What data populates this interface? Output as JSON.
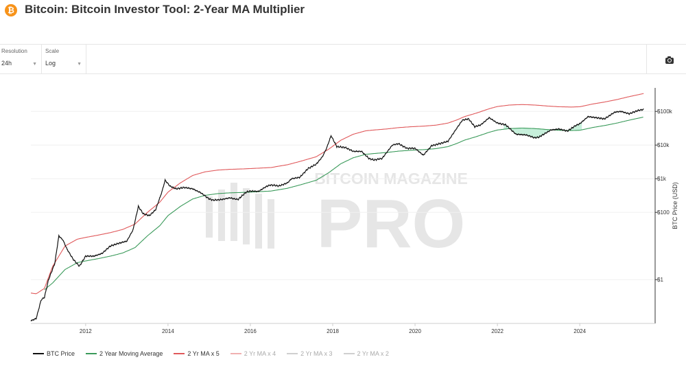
{
  "header": {
    "title": "Bitcoin: Bitcoin Investor Tool: 2-Year MA Multiplier",
    "logo_glyph": "₿",
    "logo_color": "#f7931a"
  },
  "controls": {
    "resolution": {
      "label": "Resolution",
      "value": "24h"
    },
    "scale": {
      "label": "Scale",
      "value": "Log"
    },
    "export_icon": "camera-icon"
  },
  "watermark": {
    "line1": "BITCOIN MAGAZINE",
    "line2": "PRO"
  },
  "chart_data": {
    "type": "line",
    "ylabel": "BTC Price (USD)",
    "yscale": "log",
    "ylim": [
      0.05,
      500000
    ],
    "xlim": [
      2010.67,
      2025.83
    ],
    "x_ticks": [
      2012,
      2014,
      2016,
      2018,
      2020,
      2022,
      2024
    ],
    "y_ticks": [
      {
        "value": 1,
        "label": "$1"
      },
      {
        "value": 100,
        "label": "$100"
      },
      {
        "value": 1000,
        "label": "$1k"
      },
      {
        "value": 10000,
        "label": "$10k"
      },
      {
        "value": 100000,
        "label": "$100k"
      }
    ],
    "legend_position": "bottom-left",
    "series": [
      {
        "name": "BTC Price",
        "color": "#111111",
        "visible": true,
        "points": [
          [
            2010.67,
            0.06
          ],
          [
            2010.8,
            0.07
          ],
          [
            2010.92,
            0.25
          ],
          [
            2011.0,
            0.3
          ],
          [
            2011.1,
            1.0
          ],
          [
            2011.25,
            3
          ],
          [
            2011.35,
            20
          ],
          [
            2011.45,
            15
          ],
          [
            2011.55,
            8
          ],
          [
            2011.7,
            4
          ],
          [
            2011.85,
            2.5
          ],
          [
            2012.0,
            5
          ],
          [
            2012.2,
            5
          ],
          [
            2012.4,
            6
          ],
          [
            2012.6,
            10
          ],
          [
            2012.8,
            12
          ],
          [
            2013.0,
            14
          ],
          [
            2013.15,
            30
          ],
          [
            2013.28,
            150
          ],
          [
            2013.4,
            90
          ],
          [
            2013.55,
            80
          ],
          [
            2013.7,
            120
          ],
          [
            2013.85,
            400
          ],
          [
            2013.93,
            900
          ],
          [
            2014.05,
            600
          ],
          [
            2014.2,
            500
          ],
          [
            2014.4,
            550
          ],
          [
            2014.6,
            500
          ],
          [
            2014.8,
            380
          ],
          [
            2015.0,
            250
          ],
          [
            2015.1,
            230
          ],
          [
            2015.3,
            240
          ],
          [
            2015.5,
            270
          ],
          [
            2015.7,
            240
          ],
          [
            2015.9,
            400
          ],
          [
            2016.0,
            430
          ],
          [
            2016.2,
            420
          ],
          [
            2016.4,
            600
          ],
          [
            2016.5,
            650
          ],
          [
            2016.7,
            610
          ],
          [
            2016.9,
            750
          ],
          [
            2017.0,
            1000
          ],
          [
            2017.2,
            1100
          ],
          [
            2017.4,
            2000
          ],
          [
            2017.6,
            2700
          ],
          [
            2017.75,
            4500
          ],
          [
            2017.85,
            8000
          ],
          [
            2017.96,
            19000
          ],
          [
            2018.1,
            9000
          ],
          [
            2018.3,
            8500
          ],
          [
            2018.5,
            6500
          ],
          [
            2018.7,
            6500
          ],
          [
            2018.88,
            4000
          ],
          [
            2019.0,
            3600
          ],
          [
            2019.2,
            4000
          ],
          [
            2019.45,
            10000
          ],
          [
            2019.6,
            11000
          ],
          [
            2019.8,
            8000
          ],
          [
            2020.0,
            8000
          ],
          [
            2020.2,
            5000
          ],
          [
            2020.4,
            9500
          ],
          [
            2020.6,
            11000
          ],
          [
            2020.8,
            13000
          ],
          [
            2021.0,
            30000
          ],
          [
            2021.15,
            55000
          ],
          [
            2021.3,
            60000
          ],
          [
            2021.45,
            35000
          ],
          [
            2021.6,
            40000
          ],
          [
            2021.8,
            65000
          ],
          [
            2022.0,
            45000
          ],
          [
            2022.2,
            40000
          ],
          [
            2022.45,
            21000
          ],
          [
            2022.7,
            20000
          ],
          [
            2022.9,
            16500
          ],
          [
            2023.0,
            17000
          ],
          [
            2023.3,
            28000
          ],
          [
            2023.5,
            30000
          ],
          [
            2023.7,
            26000
          ],
          [
            2023.9,
            38000
          ],
          [
            2024.0,
            43000
          ],
          [
            2024.2,
            70000
          ],
          [
            2024.4,
            65000
          ],
          [
            2024.6,
            60000
          ],
          [
            2024.85,
            95000
          ],
          [
            2025.0,
            100000
          ],
          [
            2025.2,
            85000
          ],
          [
            2025.4,
            105000
          ],
          [
            2025.55,
            115000
          ]
        ]
      },
      {
        "name": "2 Year Moving Average",
        "color": "#3a9a5a",
        "visible": true,
        "points": [
          [
            2011.0,
            0.5
          ],
          [
            2011.2,
            0.8
          ],
          [
            2011.5,
            2.0
          ],
          [
            2011.8,
            3.2
          ],
          [
            2012.0,
            3.6
          ],
          [
            2012.3,
            4.2
          ],
          [
            2012.6,
            5.0
          ],
          [
            2012.9,
            6.2
          ],
          [
            2013.2,
            9
          ],
          [
            2013.5,
            20
          ],
          [
            2013.8,
            40
          ],
          [
            2014.0,
            80
          ],
          [
            2014.3,
            150
          ],
          [
            2014.6,
            250
          ],
          [
            2014.9,
            320
          ],
          [
            2015.2,
            360
          ],
          [
            2015.5,
            380
          ],
          [
            2015.8,
            390
          ],
          [
            2016.0,
            400
          ],
          [
            2016.5,
            430
          ],
          [
            2016.9,
            520
          ],
          [
            2017.2,
            650
          ],
          [
            2017.6,
            900
          ],
          [
            2017.9,
            1500
          ],
          [
            2018.2,
            2800
          ],
          [
            2018.5,
            4200
          ],
          [
            2018.8,
            5300
          ],
          [
            2019.0,
            5600
          ],
          [
            2019.3,
            6000
          ],
          [
            2019.6,
            6600
          ],
          [
            2019.9,
            7000
          ],
          [
            2020.2,
            7300
          ],
          [
            2020.5,
            7800
          ],
          [
            2020.8,
            9000
          ],
          [
            2021.0,
            11000
          ],
          [
            2021.2,
            14000
          ],
          [
            2021.5,
            18000
          ],
          [
            2021.8,
            24000
          ],
          [
            2022.0,
            28000
          ],
          [
            2022.3,
            31000
          ],
          [
            2022.6,
            32000
          ],
          [
            2022.9,
            31000
          ],
          [
            2023.2,
            29000
          ],
          [
            2023.5,
            27500
          ],
          [
            2023.8,
            27000
          ],
          [
            2024.0,
            27500
          ],
          [
            2024.3,
            33000
          ],
          [
            2024.6,
            38000
          ],
          [
            2024.9,
            45000
          ],
          [
            2025.2,
            55000
          ],
          [
            2025.55,
            68000
          ]
        ]
      },
      {
        "name": "2 Yr MA x 5",
        "color": "#e0585a",
        "visible": true,
        "points": [
          [
            2010.67,
            0.4
          ],
          [
            2010.8,
            0.38
          ],
          [
            2011.0,
            0.55
          ],
          [
            2011.2,
            2.5
          ],
          [
            2011.5,
            10
          ],
          [
            2011.8,
            16
          ],
          [
            2012.0,
            18
          ],
          [
            2012.3,
            21
          ],
          [
            2012.6,
            25
          ],
          [
            2012.9,
            31
          ],
          [
            2013.2,
            45
          ],
          [
            2013.5,
            100
          ],
          [
            2013.8,
            200
          ],
          [
            2014.0,
            400
          ],
          [
            2014.3,
            750
          ],
          [
            2014.6,
            1250
          ],
          [
            2014.9,
            1600
          ],
          [
            2015.2,
            1800
          ],
          [
            2015.5,
            1900
          ],
          [
            2015.8,
            1950
          ],
          [
            2016.0,
            2000
          ],
          [
            2016.5,
            2150
          ],
          [
            2016.9,
            2600
          ],
          [
            2017.2,
            3250
          ],
          [
            2017.6,
            4500
          ],
          [
            2017.9,
            7500
          ],
          [
            2018.2,
            14000
          ],
          [
            2018.5,
            21000
          ],
          [
            2018.8,
            26500
          ],
          [
            2019.0,
            28000
          ],
          [
            2019.3,
            30000
          ],
          [
            2019.6,
            33000
          ],
          [
            2019.9,
            35000
          ],
          [
            2020.2,
            36500
          ],
          [
            2020.5,
            39000
          ],
          [
            2020.8,
            45000
          ],
          [
            2021.0,
            55000
          ],
          [
            2021.2,
            70000
          ],
          [
            2021.5,
            90000
          ],
          [
            2021.8,
            120000
          ],
          [
            2022.0,
            140000
          ],
          [
            2022.3,
            155000
          ],
          [
            2022.6,
            160000
          ],
          [
            2022.9,
            155000
          ],
          [
            2023.2,
            145000
          ],
          [
            2023.5,
            137500
          ],
          [
            2023.8,
            135000
          ],
          [
            2024.0,
            137500
          ],
          [
            2024.3,
            165000
          ],
          [
            2024.6,
            190000
          ],
          [
            2024.9,
            225000
          ],
          [
            2025.2,
            275000
          ],
          [
            2025.55,
            340000
          ]
        ]
      },
      {
        "name": "2 Yr MA x 4",
        "color": "#f0b0b0",
        "visible": false,
        "points": []
      },
      {
        "name": "2 Yr MA x 3",
        "color": "#cfcfcf",
        "visible": false,
        "points": []
      },
      {
        "name": "2 Yr MA x 2",
        "color": "#cfcfcf",
        "visible": false,
        "points": []
      }
    ]
  }
}
